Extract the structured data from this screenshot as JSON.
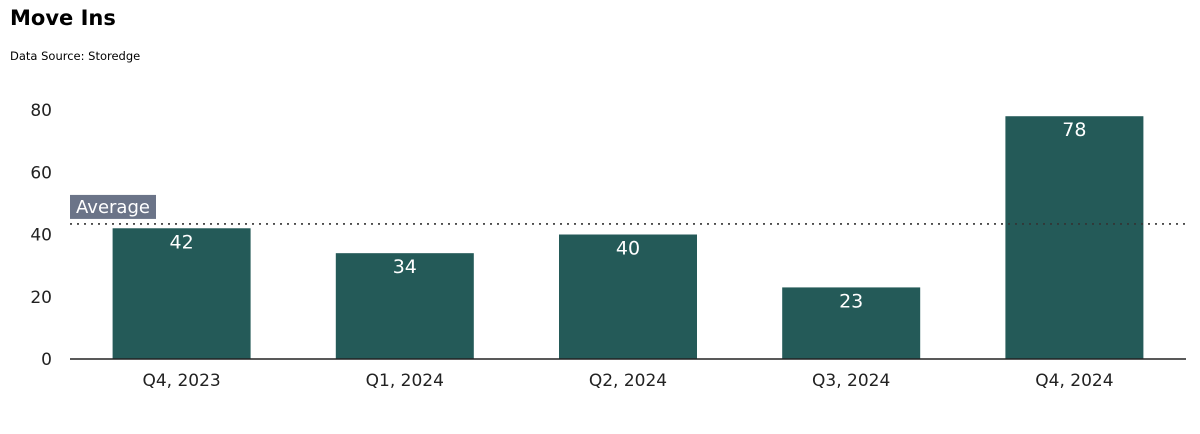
{
  "title": "Move Ins",
  "subtitle": "Data Source: Storedge",
  "colors": {
    "bar": "#245a58",
    "average_badge": "#6b7488",
    "axis": "#222222"
  },
  "chart_data": {
    "type": "bar",
    "title": "Move Ins",
    "subtitle": "Data Source: Storedge",
    "xlabel": "",
    "ylabel": "",
    "categories": [
      "Q4, 2023",
      "Q1, 2024",
      "Q2, 2024",
      "Q3, 2024",
      "Q4, 2024"
    ],
    "values": [
      42,
      34,
      40,
      23,
      78
    ],
    "data_labels": [
      "42",
      "34",
      "40",
      "23",
      "78"
    ],
    "ylim": [
      0,
      80
    ],
    "yticks": [
      0,
      20,
      40,
      60,
      80
    ],
    "grid": false,
    "reference_line": {
      "label": "Average",
      "value": 43.4,
      "style": "dotted"
    }
  }
}
